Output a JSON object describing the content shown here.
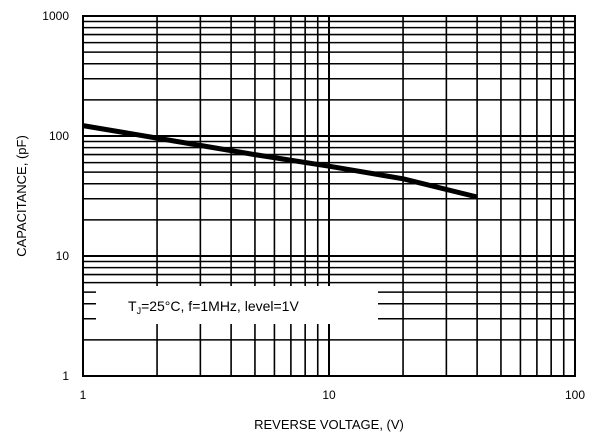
{
  "chart_data": {
    "type": "line",
    "x_scale": "log",
    "y_scale": "log",
    "xlim": [
      1,
      100
    ],
    "ylim": [
      1,
      1000
    ],
    "xlabel": "REVERSE VOLTAGE, (V)",
    "ylabel": "CAPACITANCE, (pF)",
    "x_tick_labels": [
      "1",
      "10",
      "100"
    ],
    "y_tick_labels": [
      "1",
      "10",
      "100",
      "1000"
    ],
    "x_ticks": [
      1,
      10,
      100
    ],
    "y_ticks": [
      1,
      10,
      100,
      1000
    ],
    "grid": true,
    "series": [
      {
        "x": [
          1,
          2,
          5,
          10,
          20,
          40
        ],
        "values": [
          122,
          96,
          70,
          56,
          44,
          31
        ]
      }
    ],
    "annotation": {
      "prefix": "T",
      "subscript": "J",
      "suffix": "=25°C, f=1MHz, level=1V"
    },
    "colors": {
      "line": "#000000",
      "grid": "#000000",
      "annotation_box": "#ffffff"
    }
  }
}
